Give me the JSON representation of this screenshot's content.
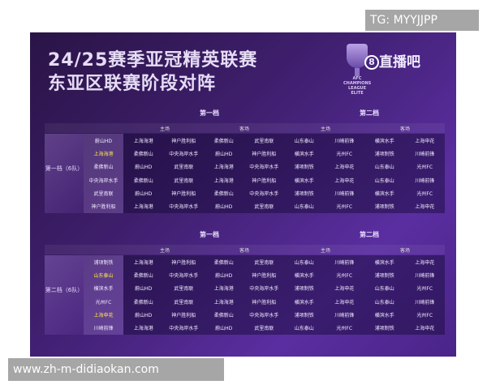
{
  "watermark_top": "TG: MYYJJPP",
  "watermark_bottom": "www.zh-m-didiaokan.com",
  "title_line1": "24/25赛季亚冠精英联赛",
  "title_line2": "东亚区联赛阶段对阵",
  "brand": {
    "mark": "8",
    "name": "直播吧"
  },
  "logo_text": "AFC CHAMPIONS LEAGUE ELITE",
  "colors": {
    "background": "#3f1f6e",
    "highlight": "#ffe94a"
  },
  "tables": [
    {
      "pot_label": "第一档（6队）",
      "tier1": "第一档",
      "tier2": "第二档",
      "home": "主场",
      "away": "客场",
      "teams": [
        {
          "name": "蔚山HD"
        },
        {
          "name": "上海海港",
          "highlight": true
        },
        {
          "name": "柔佛新山"
        },
        {
          "name": "中央海岸水手"
        },
        {
          "name": "武里南联"
        },
        {
          "name": "神户胜利船"
        }
      ],
      "rows": [
        [
          "上海海港",
          "神户胜利船",
          "柔佛新山",
          "武里南联",
          "山东泰山",
          "川崎前锋",
          "横滨水手",
          "上海申花"
        ],
        [
          "柔佛新山",
          "中央海岸水手",
          "蔚山HD",
          "神户胜利船",
          "横滨水手",
          "光州FC",
          "浦项制铁",
          "川崎前锋"
        ],
        [
          "蔚山HD",
          "武里南联",
          "上海海港",
          "中央海岸水手",
          "浦项制铁",
          "上海申花",
          "山东泰山",
          "光州FC"
        ],
        [
          "柔佛新山",
          "武里南联",
          "上海海港",
          "神户胜利船",
          "横滨水手",
          "上海申花",
          "山东泰山",
          "川崎前锋"
        ],
        [
          "蔚山HD",
          "神户胜利船",
          "柔佛新山",
          "中央海岸水手",
          "浦项制铁",
          "川崎前锋",
          "横滨水手",
          "光州FC"
        ],
        [
          "上海海港",
          "中央海岸水手",
          "蔚山HD",
          "武里南联",
          "山东泰山",
          "光州FC",
          "浦项制铁",
          "上海申花"
        ]
      ]
    },
    {
      "pot_label": "第二档（6队）",
      "tier1": "第一档",
      "tier2": "第二档",
      "home": "主场",
      "away": "客场",
      "teams": [
        {
          "name": "浦项制铁"
        },
        {
          "name": "山东泰山",
          "highlight": true
        },
        {
          "name": "横滨水手"
        },
        {
          "name": "光州FC"
        },
        {
          "name": "上海申花",
          "highlight": true
        },
        {
          "name": "川崎前锋"
        }
      ],
      "rows": [
        [
          "上海海港",
          "神户胜利船",
          "柔佛新山",
          "武里南联",
          "山东泰山",
          "川崎前锋",
          "横滨水手",
          "上海申花"
        ],
        [
          "柔佛新山",
          "中央海岸水手",
          "蔚山HD",
          "神户胜利船",
          "横滨水手",
          "光州FC",
          "浦项制铁",
          "川崎前锋"
        ],
        [
          "蔚山HD",
          "武里南联",
          "上海海港",
          "中央海岸水手",
          "浦项制铁",
          "上海申花",
          "山东泰山",
          "光州FC"
        ],
        [
          "柔佛新山",
          "武里南联",
          "上海海港",
          "神户胜利船",
          "横滨水手",
          "上海申花",
          "山东泰山",
          "川崎前锋"
        ],
        [
          "蔚山HD",
          "神户胜利船",
          "柔佛新山",
          "中央海岸水手",
          "浦项制铁",
          "川崎前锋",
          "横滨水手",
          "光州FC"
        ],
        [
          "上海海港",
          "中央海岸水手",
          "蔚山HD",
          "武里南联",
          "山东泰山",
          "光州FC",
          "浦项制铁",
          "上海申花"
        ]
      ]
    }
  ]
}
